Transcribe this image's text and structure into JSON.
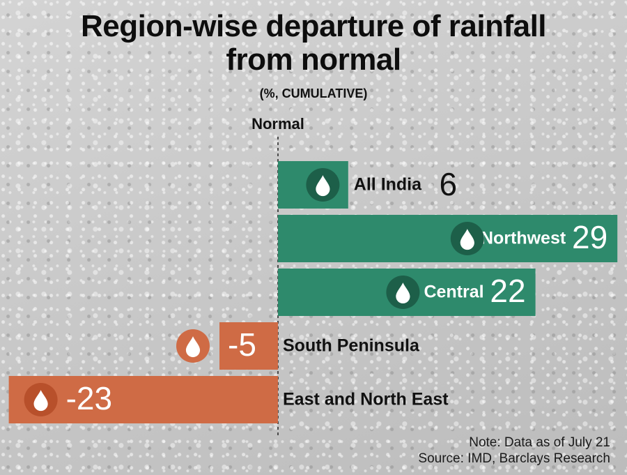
{
  "title_line1": "Region-wise departure of rainfall",
  "title_line2": "from normal",
  "subtitle": "(%, CUMULATIVE)",
  "note": "Note: Data as of July 21",
  "source": "Source: IMD, Barclays Research",
  "colors": {
    "positive": "#2e8a6c",
    "negative": "#cf6b45",
    "positive_icon": "#1d5f49",
    "negative_icon": "#b8502b",
    "text": "#111111",
    "value_on_bar": "#ffffff"
  },
  "chart_data": {
    "type": "bar",
    "orientation": "horizontal",
    "baseline_label": "Normal",
    "unit": "%",
    "xlim": [
      -23,
      29
    ],
    "categories": [
      "All India",
      "Northwest",
      "Central",
      "South Peninsula",
      "East and North East"
    ],
    "values": [
      6,
      29,
      22,
      -5,
      -23
    ],
    "value_labels": [
      "6",
      "29",
      "22",
      "-5",
      "-23"
    ],
    "icon": "water-drop-icon"
  }
}
